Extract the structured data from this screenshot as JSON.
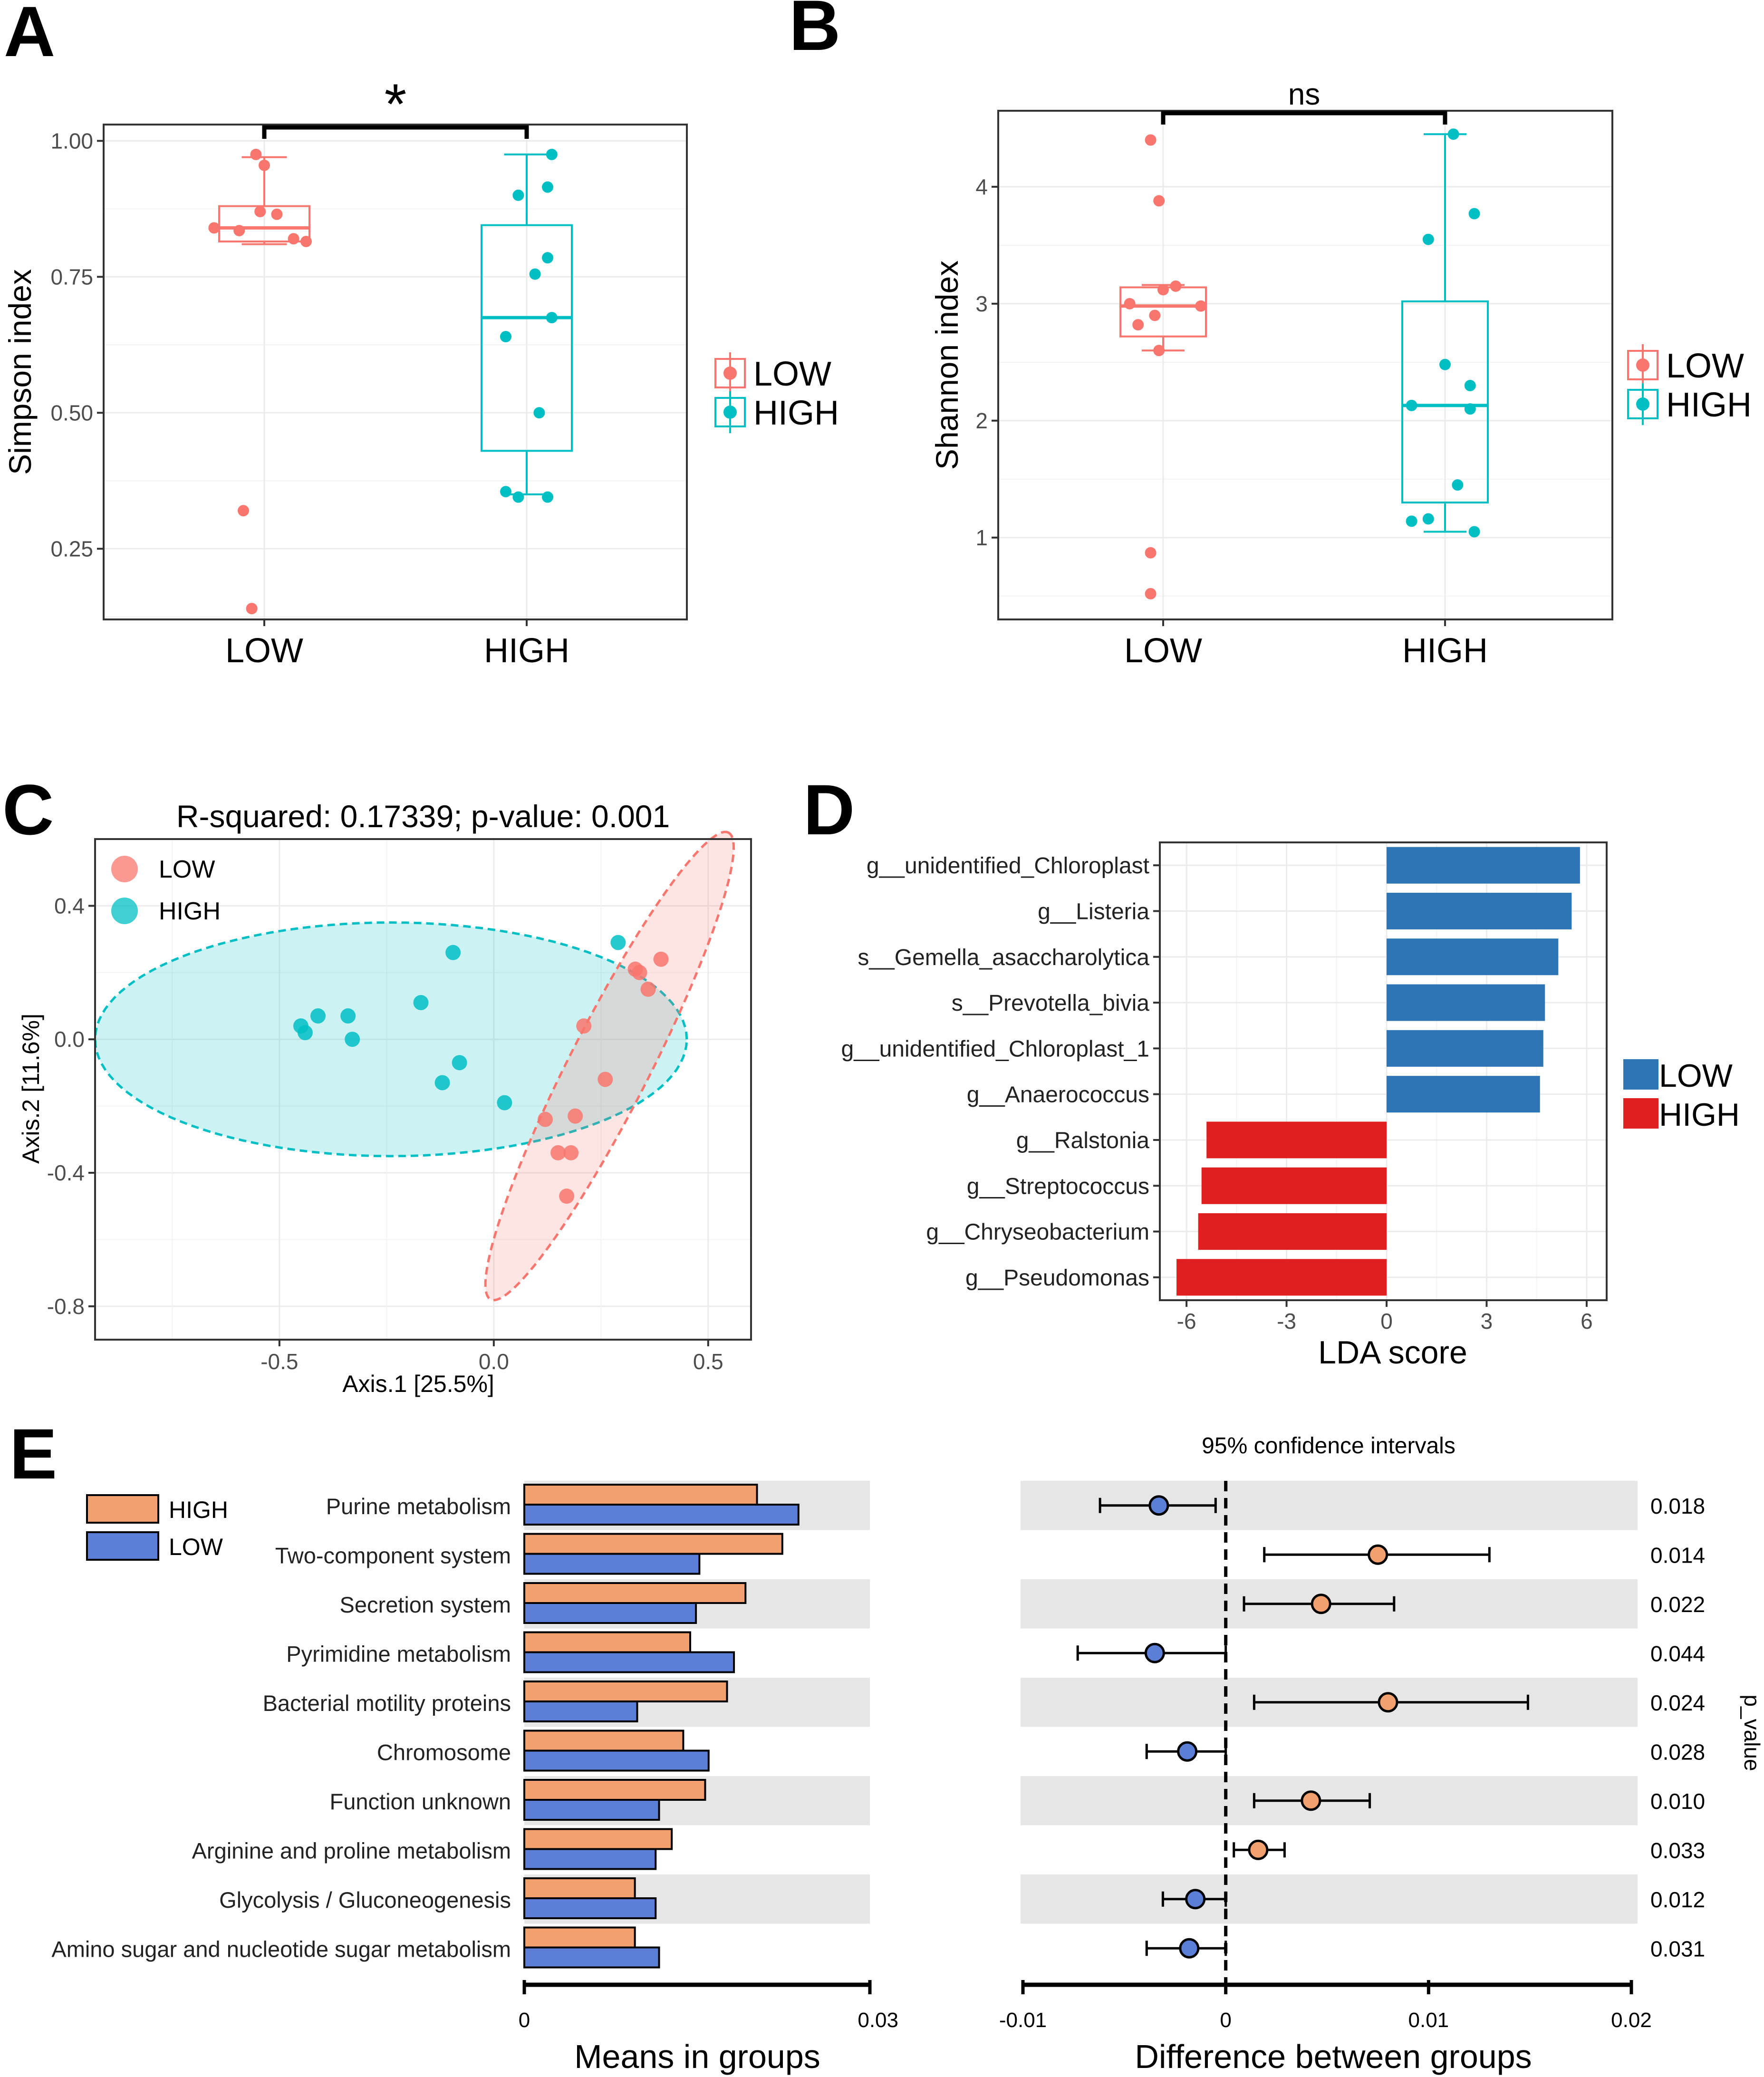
{
  "colors": {
    "low_pink": "#F8766D",
    "high_teal": "#00BFC4",
    "lda_low": "#2E75B6",
    "lda_high": "#E02020",
    "bar_high": "#F3A06F",
    "bar_low": "#5B7FD6",
    "band": "#E6E6E6"
  },
  "panels": {
    "A": {
      "label": "A"
    },
    "B": {
      "label": "B"
    },
    "C": {
      "label": "C"
    },
    "D": {
      "label": "D"
    },
    "E": {
      "label": "E"
    }
  },
  "chart_data": [
    {
      "id": "A",
      "type": "box",
      "ylabel": "Simpson index",
      "categories": [
        "LOW",
        "HIGH"
      ],
      "ylim": [
        0.12,
        1.03
      ],
      "yticks": [
        0.25,
        0.5,
        0.75,
        1.0
      ],
      "ytick_labels": [
        "0.25",
        "0.50",
        "0.75",
        "1.00"
      ],
      "significance": "*",
      "legend": [
        "LOW",
        "HIGH"
      ],
      "boxes": [
        {
          "group": "LOW",
          "q1": 0.815,
          "median": 0.84,
          "q3": 0.88,
          "whisker_low": 0.81,
          "whisker_high": 0.97
        },
        {
          "group": "HIGH",
          "q1": 0.43,
          "median": 0.675,
          "q3": 0.845,
          "whisker_low": 0.35,
          "whisker_high": 0.975
        }
      ],
      "points": [
        {
          "group": "LOW",
          "jitter": -0.02,
          "value": 0.975
        },
        {
          "group": "LOW",
          "jitter": 0.0,
          "value": 0.955
        },
        {
          "group": "LOW",
          "jitter": -0.01,
          "value": 0.87
        },
        {
          "group": "LOW",
          "jitter": 0.03,
          "value": 0.865
        },
        {
          "group": "LOW",
          "jitter": -0.12,
          "value": 0.84
        },
        {
          "group": "LOW",
          "jitter": -0.06,
          "value": 0.835
        },
        {
          "group": "LOW",
          "jitter": 0.07,
          "value": 0.82
        },
        {
          "group": "LOW",
          "jitter": 0.1,
          "value": 0.815
        },
        {
          "group": "LOW",
          "jitter": -0.05,
          "value": 0.32
        },
        {
          "group": "LOW",
          "jitter": -0.03,
          "value": 0.14
        },
        {
          "group": "HIGH",
          "jitter": 0.06,
          "value": 0.975
        },
        {
          "group": "HIGH",
          "jitter": 0.05,
          "value": 0.915
        },
        {
          "group": "HIGH",
          "jitter": -0.02,
          "value": 0.9
        },
        {
          "group": "HIGH",
          "jitter": 0.05,
          "value": 0.785
        },
        {
          "group": "HIGH",
          "jitter": 0.02,
          "value": 0.755
        },
        {
          "group": "HIGH",
          "jitter": 0.06,
          "value": 0.675
        },
        {
          "group": "HIGH",
          "jitter": -0.05,
          "value": 0.64
        },
        {
          "group": "HIGH",
          "jitter": 0.03,
          "value": 0.5
        },
        {
          "group": "HIGH",
          "jitter": -0.05,
          "value": 0.355
        },
        {
          "group": "HIGH",
          "jitter": -0.02,
          "value": 0.345
        },
        {
          "group": "HIGH",
          "jitter": 0.05,
          "value": 0.345
        }
      ]
    },
    {
      "id": "B",
      "type": "box",
      "ylabel": "Shannon index",
      "categories": [
        "LOW",
        "HIGH"
      ],
      "ylim": [
        0.3,
        4.65
      ],
      "yticks": [
        1,
        2,
        3,
        4
      ],
      "ytick_labels": [
        "1",
        "2",
        "3",
        "4"
      ],
      "significance": "ns",
      "legend": [
        "LOW",
        "HIGH"
      ],
      "boxes": [
        {
          "group": "LOW",
          "q1": 2.72,
          "median": 2.98,
          "q3": 3.14,
          "whisker_low": 2.6,
          "whisker_high": 3.16
        },
        {
          "group": "HIGH",
          "q1": 1.3,
          "median": 2.13,
          "q3": 3.02,
          "whisker_low": 1.05,
          "whisker_high": 4.45
        }
      ],
      "points": [
        {
          "group": "LOW",
          "jitter": -0.03,
          "value": 4.4
        },
        {
          "group": "LOW",
          "jitter": -0.01,
          "value": 3.88
        },
        {
          "group": "LOW",
          "jitter": 0.03,
          "value": 3.15
        },
        {
          "group": "LOW",
          "jitter": 0.0,
          "value": 3.12
        },
        {
          "group": "LOW",
          "jitter": -0.08,
          "value": 3.0
        },
        {
          "group": "LOW",
          "jitter": 0.09,
          "value": 2.98
        },
        {
          "group": "LOW",
          "jitter": -0.02,
          "value": 2.9
        },
        {
          "group": "LOW",
          "jitter": -0.06,
          "value": 2.82
        },
        {
          "group": "LOW",
          "jitter": -0.01,
          "value": 2.6
        },
        {
          "group": "LOW",
          "jitter": -0.03,
          "value": 0.87
        },
        {
          "group": "LOW",
          "jitter": -0.03,
          "value": 0.52
        },
        {
          "group": "HIGH",
          "jitter": 0.02,
          "value": 4.45
        },
        {
          "group": "HIGH",
          "jitter": 0.07,
          "value": 3.77
        },
        {
          "group": "HIGH",
          "jitter": -0.04,
          "value": 3.55
        },
        {
          "group": "HIGH",
          "jitter": 0.0,
          "value": 2.48
        },
        {
          "group": "HIGH",
          "jitter": 0.06,
          "value": 2.3
        },
        {
          "group": "HIGH",
          "jitter": -0.08,
          "value": 2.13
        },
        {
          "group": "HIGH",
          "jitter": 0.06,
          "value": 2.1
        },
        {
          "group": "HIGH",
          "jitter": 0.03,
          "value": 1.45
        },
        {
          "group": "HIGH",
          "jitter": -0.04,
          "value": 1.16
        },
        {
          "group": "HIGH",
          "jitter": -0.08,
          "value": 1.14
        },
        {
          "group": "HIGH",
          "jitter": 0.07,
          "value": 1.05
        }
      ]
    },
    {
      "id": "C",
      "type": "scatter",
      "title": "R-squared: 0.17339; p-value: 0.001",
      "xlabel": "Axis.1   [25.5%]",
      "ylabel": "Axis.2   [11.6%]",
      "xlim": [
        -0.93,
        0.6
      ],
      "ylim": [
        -0.9,
        0.6
      ],
      "xticks": [
        -0.5,
        0.0,
        0.5
      ],
      "xtick_labels": [
        "-0.5",
        "0.0",
        "0.5"
      ],
      "yticks": [
        -0.8,
        -0.4,
        0.0,
        0.4
      ],
      "ytick_labels": [
        "-0.8",
        "-0.4",
        "0.0",
        "0.4"
      ],
      "legend": [
        "LOW",
        "HIGH"
      ],
      "ellipses": [
        {
          "group": "HIGH",
          "cx": -0.24,
          "cy": 0.0,
          "rx": 0.69,
          "ry": 0.35,
          "angle_deg": 0
        },
        {
          "group": "LOW",
          "cx": 0.27,
          "cy": -0.08,
          "rx": 0.785,
          "ry": 0.12,
          "angle_deg": 63
        }
      ],
      "points": [
        {
          "group": "HIGH",
          "x": -0.095,
          "y": 0.26
        },
        {
          "group": "HIGH",
          "x": -0.17,
          "y": 0.11
        },
        {
          "group": "HIGH",
          "x": -0.41,
          "y": 0.07
        },
        {
          "group": "HIGH",
          "x": -0.34,
          "y": 0.07
        },
        {
          "group": "HIGH",
          "x": -0.45,
          "y": 0.04
        },
        {
          "group": "HIGH",
          "x": -0.44,
          "y": 0.02
        },
        {
          "group": "HIGH",
          "x": -0.33,
          "y": 0.0
        },
        {
          "group": "HIGH",
          "x": -0.08,
          "y": -0.07
        },
        {
          "group": "HIGH",
          "x": -0.12,
          "y": -0.13
        },
        {
          "group": "HIGH",
          "x": 0.025,
          "y": -0.19
        },
        {
          "group": "HIGH",
          "x": 0.29,
          "y": 0.29
        },
        {
          "group": "LOW",
          "x": 0.39,
          "y": 0.24
        },
        {
          "group": "LOW",
          "x": 0.33,
          "y": 0.21
        },
        {
          "group": "LOW",
          "x": 0.34,
          "y": 0.2
        },
        {
          "group": "LOW",
          "x": 0.36,
          "y": 0.15
        },
        {
          "group": "LOW",
          "x": 0.21,
          "y": 0.04
        },
        {
          "group": "LOW",
          "x": 0.26,
          "y": -0.12
        },
        {
          "group": "LOW",
          "x": 0.12,
          "y": -0.24
        },
        {
          "group": "LOW",
          "x": 0.19,
          "y": -0.23
        },
        {
          "group": "LOW",
          "x": 0.15,
          "y": -0.34
        },
        {
          "group": "LOW",
          "x": 0.18,
          "y": -0.34
        },
        {
          "group": "LOW",
          "x": 0.17,
          "y": -0.47
        }
      ]
    },
    {
      "id": "D",
      "type": "bar",
      "orientation": "horizontal",
      "xlabel": "LDA score",
      "xlim": [
        -6.8,
        6.6
      ],
      "xticks": [
        -6,
        -3,
        0,
        3,
        6
      ],
      "xtick_labels": [
        "-6",
        "-3",
        "0",
        "3",
        "6"
      ],
      "legend": [
        "LOW",
        "HIGH"
      ],
      "categories": [
        "g__unidentified_Chloroplast",
        "g__Listeria",
        "s__Gemella_asaccharolytica",
        "s__Prevotella_bivia",
        "g__unidentified_Chloroplast_1",
        "g__Anaerococcus",
        "g__Ralstonia",
        "g__Streptococcus",
        "g__Chryseobacterium",
        "g__Pseudomonas"
      ],
      "values": [
        5.8,
        5.55,
        5.15,
        4.75,
        4.7,
        4.6,
        -5.4,
        -5.55,
        -5.65,
        -6.3
      ],
      "groups": [
        "LOW",
        "LOW",
        "LOW",
        "LOW",
        "LOW",
        "LOW",
        "HIGH",
        "HIGH",
        "HIGH",
        "HIGH"
      ]
    },
    {
      "id": "E_means",
      "type": "bar",
      "orientation": "horizontal",
      "xlabel": "Means in groups",
      "xlim": [
        0,
        0.03
      ],
      "xtick_labels": [
        "0",
        "0.03"
      ],
      "legend": [
        "HIGH",
        "LOW"
      ],
      "categories": [
        "Purine metabolism",
        "Two-component system",
        "Secretion system",
        "Pyrimidine metabolism",
        "Bacterial motility proteins",
        "Chromosome",
        "Function unknown",
        "Arginine and proline metabolism",
        "Glycolysis / Gluconeogenesis",
        "Amino sugar and nucleotide sugar metabolism"
      ],
      "series": [
        {
          "name": "HIGH",
          "values": [
            0.0202,
            0.0224,
            0.0192,
            0.0144,
            0.0176,
            0.0138,
            0.0157,
            0.0128,
            0.0096,
            0.0096
          ]
        },
        {
          "name": "LOW",
          "values": [
            0.0238,
            0.0152,
            0.0149,
            0.0182,
            0.0098,
            0.016,
            0.0117,
            0.0114,
            0.0114,
            0.0117
          ]
        }
      ]
    },
    {
      "id": "E_diff",
      "type": "errorbar",
      "title": "95% confidence intervals",
      "xlabel": "Difference between groups",
      "ylabel": "p_value",
      "xlim": [
        -0.01,
        0.02
      ],
      "xticks": [
        -0.01,
        0.0,
        0.01,
        0.02
      ],
      "xtick_labels": [
        "-0.01",
        "0",
        "0.01",
        "0.02"
      ],
      "categories": [
        "Purine metabolism",
        "Two-component system",
        "Secretion system",
        "Pyrimidine metabolism",
        "Bacterial motility proteins",
        "Chromosome",
        "Function unknown",
        "Arginine and proline metabolism",
        "Glycolysis / Gluconeogenesis",
        "Amino sugar and nucleotide sugar metabolism"
      ],
      "estimate": [
        -0.0033,
        0.0075,
        0.0047,
        -0.0035,
        0.008,
        -0.0019,
        0.0042,
        0.0016,
        -0.0015,
        -0.0018
      ],
      "lower": [
        -0.0062,
        0.0019,
        0.0009,
        -0.0073,
        0.0014,
        -0.0039,
        0.0014,
        0.0004,
        -0.0031,
        -0.0039
      ],
      "upper": [
        -0.0005,
        0.013,
        0.0083,
        0.0,
        0.0149,
        0.0,
        0.0071,
        0.0029,
        0.0,
        0.0
      ],
      "groups": [
        "LOW",
        "HIGH",
        "HIGH",
        "LOW",
        "HIGH",
        "LOW",
        "HIGH",
        "HIGH",
        "LOW",
        "LOW"
      ],
      "p_values": [
        "0.018",
        "0.014",
        "0.022",
        "0.044",
        "0.024",
        "0.028",
        "0.010",
        "0.033",
        "0.012",
        "0.031"
      ]
    }
  ]
}
